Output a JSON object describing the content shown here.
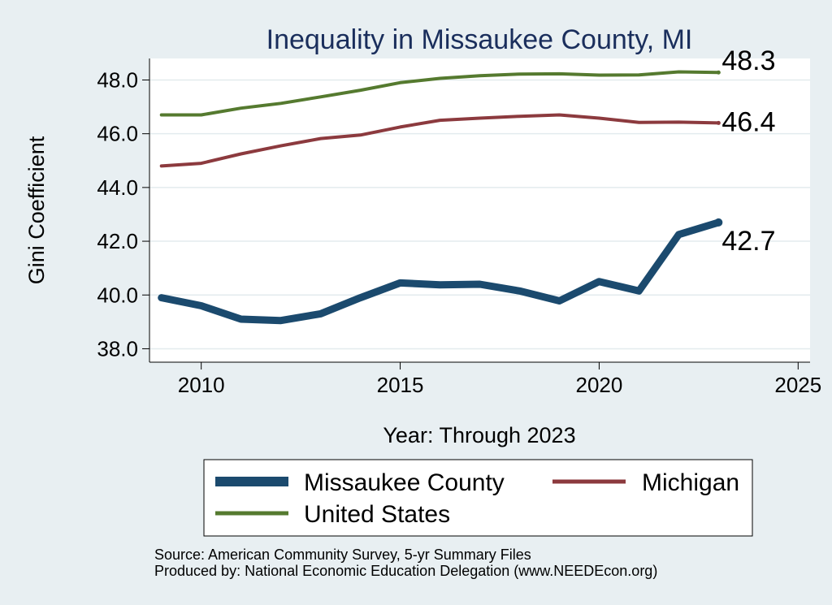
{
  "chart_data": {
    "type": "line",
    "title": "Inequality in Missaukee County, MI",
    "xlabel": "Year: Through 2023",
    "ylabel": "Gini Coefficient",
    "xlim": [
      2008.7,
      2025.3
    ],
    "ylim": [
      37.5,
      48.8
    ],
    "xticks": [
      2010,
      2015,
      2020,
      2025
    ],
    "yticks": [
      38.0,
      40.0,
      42.0,
      44.0,
      46.0,
      48.0
    ],
    "x": [
      2009,
      2010,
      2011,
      2012,
      2013,
      2014,
      2015,
      2016,
      2017,
      2018,
      2019,
      2020,
      2021,
      2022,
      2023
    ],
    "series": [
      {
        "name": "Missaukee County",
        "color": "#1b4a6e",
        "values": [
          39.9,
          39.6,
          39.1,
          39.05,
          39.3,
          39.9,
          40.45,
          40.38,
          40.4,
          40.15,
          39.78,
          40.5,
          40.15,
          42.25,
          42.7
        ],
        "end_label": "42.7"
      },
      {
        "name": "Michigan",
        "color": "#8c3a3e",
        "values": [
          44.8,
          44.9,
          45.25,
          45.55,
          45.82,
          45.95,
          46.25,
          46.5,
          46.58,
          46.65,
          46.7,
          46.58,
          46.42,
          46.43,
          46.4
        ],
        "end_label": "46.4"
      },
      {
        "name": "United States",
        "color": "#557a2f",
        "values": [
          46.7,
          46.7,
          46.95,
          47.13,
          47.37,
          47.62,
          47.9,
          48.06,
          48.16,
          48.22,
          48.23,
          48.18,
          48.19,
          48.3,
          48.28
        ],
        "end_label": "48.3"
      }
    ],
    "legend": {
      "position": "bottom",
      "entries": [
        "Missaukee County",
        "Michigan",
        "United States"
      ]
    },
    "notes": [
      "Source: American Community Survey, 5-yr Summary Files",
      "Produced by: National Economic Education Delegation (www.NEEDEcon.org)"
    ]
  }
}
